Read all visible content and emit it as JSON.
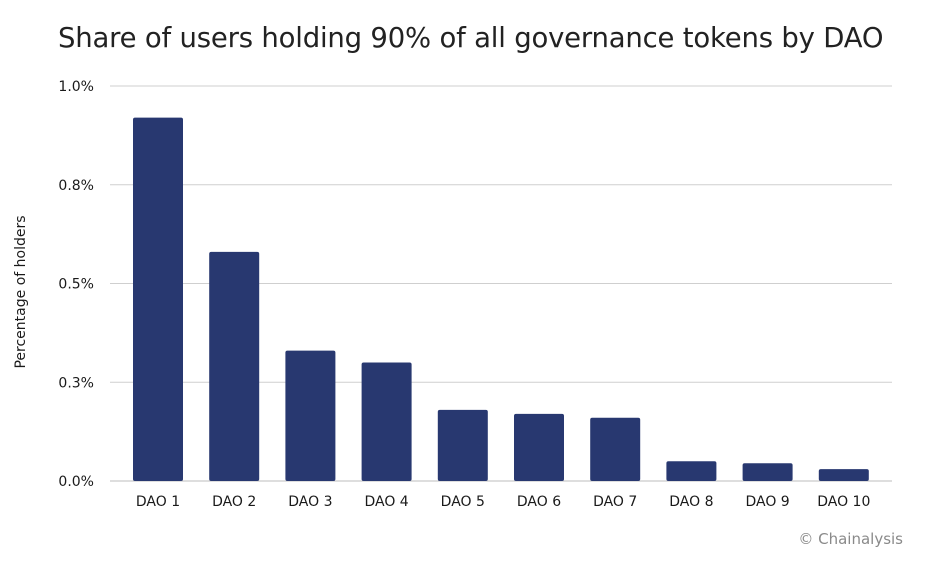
{
  "chart_data": {
    "type": "bar",
    "title": "Share of users holding 90% of all governance tokens by DAO",
    "ylabel": "Percentage of holders",
    "xlabel": "",
    "categories": [
      "DAO 1",
      "DAO 2",
      "DAO 3",
      "DAO 4",
      "DAO 5",
      "DAO 6",
      "DAO 7",
      "DAO 8",
      "DAO 9",
      "DAO 10"
    ],
    "values": [
      0.92,
      0.58,
      0.33,
      0.3,
      0.18,
      0.17,
      0.16,
      0.05,
      0.045,
      0.03
    ],
    "ylim": [
      0,
      1.0
    ],
    "yticks": [
      {
        "value": 0.0,
        "label": "0.0%"
      },
      {
        "value": 0.25,
        "label": "0.3%"
      },
      {
        "value": 0.5,
        "label": "0.5%"
      },
      {
        "value": 0.75,
        "label": "0.8%"
      },
      {
        "value": 1.0,
        "label": "1.0%"
      }
    ],
    "bar_color": "#283870",
    "grid": true,
    "legend": "none"
  },
  "footer": {
    "credit": "© Chainalysis"
  }
}
